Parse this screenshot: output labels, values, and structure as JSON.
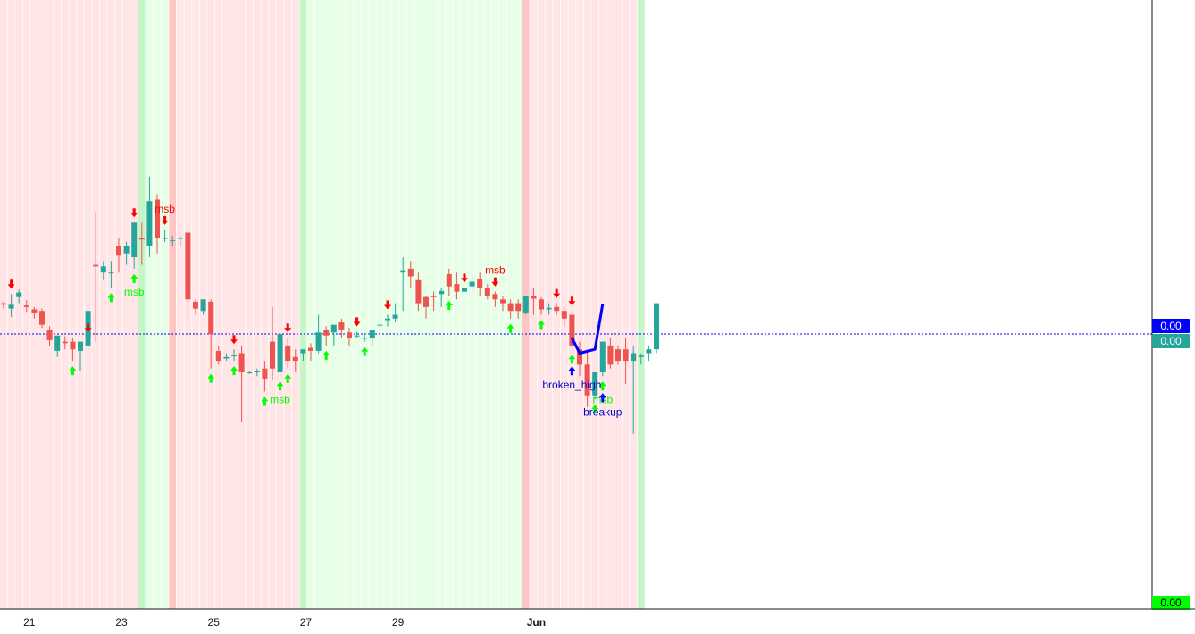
{
  "chart_data": {
    "type": "candlestick",
    "title": "",
    "x_tick_labels": [
      "21",
      "23",
      "25",
      "27",
      "29",
      "Jun"
    ],
    "price_badges": [
      {
        "label": "0.00",
        "color": "#0000ff"
      },
      {
        "label": "0.00",
        "color": "#26a69a"
      },
      {
        "label": "0.00",
        "color": "#00ff00"
      }
    ],
    "background_regions": [
      {
        "from": 0,
        "to": 17,
        "state": "bearish",
        "color": "#ffe5e5"
      },
      {
        "from": 18,
        "to": 21,
        "state": "bullish",
        "color": "#e6ffe6"
      },
      {
        "from": 22,
        "to": 38,
        "state": "bearish",
        "color": "#ffe5e5"
      },
      {
        "from": 39,
        "to": 67,
        "state": "bullish",
        "color": "#e6ffe6"
      },
      {
        "from": 68,
        "to": 82,
        "state": "bearish",
        "color": "#ffe5e5"
      },
      {
        "from": 83,
        "to": 83,
        "state": "bullish",
        "color": "#e6ffe6"
      }
    ],
    "candles": [
      [
        4.0,
        4.2,
        3.8,
        3.3
      ],
      [
        3.3,
        5.2,
        3.8,
        2.2
      ],
      [
        4.8,
        5.8,
        5.4,
        4.0
      ],
      [
        3.7,
        4.4,
        3.5,
        2.9
      ],
      [
        3.2,
        3.5,
        2.8,
        2.0
      ],
      [
        3.0,
        3.3,
        1.2,
        0.8
      ],
      [
        0.5,
        1.0,
        -0.8,
        -1.5
      ],
      [
        -2.2,
        -1.5,
        -0.2,
        -3.0
      ],
      [
        -1.0,
        -0.3,
        -1.2,
        -2.0
      ],
      [
        -1.0,
        -0.5,
        -2.0,
        -3.5
      ],
      [
        -2.2,
        -1.2,
        -1.0,
        -4.8
      ],
      [
        -1.5,
        -0.5,
        3.0,
        -2.0
      ],
      [
        9.0,
        16.0,
        8.8,
        -1.0
      ],
      [
        8.0,
        9.5,
        8.8,
        7.0
      ],
      [
        8.0,
        9.5,
        8.0,
        6.0
      ],
      [
        11.5,
        12.5,
        10.2,
        8.0
      ],
      [
        10.5,
        12.0,
        11.5,
        9.0
      ],
      [
        10.0,
        14.5,
        14.5,
        8.5
      ],
      [
        12.5,
        14.5,
        12.3,
        9.0
      ],
      [
        11.5,
        20.5,
        17.3,
        10.0
      ],
      [
        17.5,
        18.2,
        12.5,
        10.5
      ],
      [
        12.5,
        13.5,
        12.5,
        12.0
      ],
      [
        12.2,
        12.8,
        12.2,
        11.5
      ],
      [
        12.5,
        12.8,
        12.5,
        11.5
      ],
      [
        13.2,
        13.5,
        4.5,
        1.5
      ],
      [
        4.2,
        4.5,
        3.3,
        2.5
      ],
      [
        3.0,
        4.5,
        4.5,
        2.5
      ],
      [
        4.2,
        4.5,
        0.0,
        -4.5
      ],
      [
        -2.2,
        -1.5,
        -3.5,
        -4.0
      ],
      [
        -3.2,
        -2.5,
        -3.0,
        -3.5
      ],
      [
        -2.8,
        -2.0,
        -2.8,
        -3.5
      ],
      [
        -2.5,
        -1.5,
        -5.0,
        -11.5
      ],
      [
        -5.0,
        -4.8,
        -5.0,
        -5.2
      ],
      [
        -5.0,
        -4.5,
        -4.8,
        -5.5
      ],
      [
        -4.5,
        -3.5,
        -5.8,
        -7.5
      ],
      [
        -1.0,
        3.5,
        -4.5,
        -6.0
      ],
      [
        -5.0,
        0.0,
        0.0,
        -5.5
      ],
      [
        -1.5,
        -0.5,
        -3.5,
        -4.5
      ],
      [
        -3.0,
        -2.0,
        -3.5,
        -5.0
      ],
      [
        -2.5,
        -2.0,
        -2.0,
        -3.5
      ],
      [
        -1.8,
        -1.2,
        -2.2,
        -3.5
      ],
      [
        -2.2,
        2.5,
        0.2,
        -2.5
      ],
      [
        0.5,
        1.0,
        -0.2,
        -1.5
      ],
      [
        0.2,
        1.2,
        1.2,
        -1.5
      ],
      [
        1.5,
        2.0,
        0.5,
        -0.5
      ],
      [
        0.2,
        0.8,
        -0.5,
        -1.5
      ],
      [
        -0.2,
        0.3,
        -0.2,
        -0.5
      ],
      [
        -0.5,
        0.0,
        -0.5,
        -1.0
      ],
      [
        -0.5,
        0.5,
        0.5,
        -1.5
      ],
      [
        1.2,
        2.0,
        1.2,
        0.5
      ],
      [
        1.8,
        2.5,
        2.0,
        1.0
      ],
      [
        2.0,
        4.0,
        2.5,
        1.5
      ],
      [
        8.0,
        10.0,
        8.3,
        3.0
      ],
      [
        8.5,
        9.5,
        7.5,
        6.0
      ],
      [
        7.0,
        8.0,
        4.0,
        3.0
      ],
      [
        4.8,
        5.0,
        3.5,
        2.0
      ],
      [
        5.0,
        5.5,
        4.8,
        3.0
      ],
      [
        5.2,
        6.0,
        5.6,
        3.5
      ],
      [
        7.8,
        8.5,
        6.2,
        5.0
      ],
      [
        6.5,
        8.0,
        5.5,
        4.5
      ],
      [
        5.5,
        6.0,
        6.0,
        5.5
      ],
      [
        6.2,
        7.5,
        6.8,
        5.5
      ],
      [
        7.2,
        8.0,
        6.0,
        5.0
      ],
      [
        6.0,
        6.5,
        5.0,
        4.5
      ],
      [
        5.2,
        5.5,
        4.5,
        3.5
      ],
      [
        4.5,
        5.0,
        4.0,
        3.0
      ],
      [
        4.0,
        4.5,
        3.0,
        2.0
      ],
      [
        4.0,
        4.5,
        3.0,
        2.0
      ],
      [
        2.8,
        5.0,
        5.0,
        2.5
      ],
      [
        5.0,
        6.0,
        4.6,
        2.5
      ],
      [
        4.5,
        4.8,
        3.2,
        2.5
      ],
      [
        3.2,
        4.0,
        3.4,
        2.5
      ],
      [
        3.5,
        4.0,
        3.0,
        2.5
      ],
      [
        3.0,
        3.5,
        2.0,
        1.0
      ],
      [
        2.5,
        3.0,
        -1.5,
        -2.0
      ],
      [
        -2.0,
        -1.0,
        -4.0,
        -5.5
      ],
      [
        -4.0,
        -2.0,
        -8.0,
        -9.5
      ],
      [
        -8.0,
        -5.0,
        -5.0,
        -8.5
      ],
      [
        -5.0,
        -1.0,
        -1.0,
        -5.5
      ],
      [
        -1.5,
        -0.5,
        -4.0,
        -4.5
      ],
      [
        -2.0,
        -1.5,
        -3.5,
        -4.0
      ],
      [
        -2.0,
        -0.5,
        -3.5,
        -6.5
      ],
      [
        -3.5,
        -1.5,
        -2.5,
        -13.0
      ],
      [
        -3.0,
        -2.5,
        -2.8,
        -4.0
      ],
      [
        -2.5,
        -1.5,
        -2.0,
        -3.5
      ],
      [
        -2.0,
        4.0,
        4.0,
        -2.5
      ]
    ],
    "signals": [
      {
        "i": 1,
        "type": "down",
        "text": ""
      },
      {
        "i": 9,
        "type": "up",
        "text": ""
      },
      {
        "i": 11,
        "type": "down",
        "text": ""
      },
      {
        "i": 14,
        "type": "up",
        "text": ""
      },
      {
        "i": 17,
        "type": "down",
        "text": ""
      },
      {
        "i": 17,
        "type": "up",
        "text": "msb"
      },
      {
        "i": 21,
        "type": "down",
        "text": "msb"
      },
      {
        "i": 27,
        "type": "up",
        "text": ""
      },
      {
        "i": 30,
        "type": "down",
        "text": ""
      },
      {
        "i": 30,
        "type": "up",
        "text": ""
      },
      {
        "i": 34,
        "type": "up",
        "text": ""
      },
      {
        "i": 36,
        "type": "up",
        "text": "msb"
      },
      {
        "i": 37,
        "type": "down",
        "text": ""
      },
      {
        "i": 37,
        "type": "up",
        "text": ""
      },
      {
        "i": 42,
        "type": "up",
        "text": ""
      },
      {
        "i": 46,
        "type": "down",
        "text": ""
      },
      {
        "i": 47,
        "type": "up",
        "text": ""
      },
      {
        "i": 50,
        "type": "down",
        "text": ""
      },
      {
        "i": 58,
        "type": "up",
        "text": ""
      },
      {
        "i": 60,
        "type": "down",
        "text": ""
      },
      {
        "i": 64,
        "type": "down",
        "text": "msb"
      },
      {
        "i": 66,
        "type": "up",
        "text": ""
      },
      {
        "i": 70,
        "type": "up",
        "text": ""
      },
      {
        "i": 72,
        "type": "down",
        "text": ""
      },
      {
        "i": 74,
        "type": "down",
        "text": ""
      },
      {
        "i": 74,
        "type": "up",
        "text": ""
      },
      {
        "i": 77,
        "type": "up",
        "text": ""
      },
      {
        "i": 78,
        "type": "up",
        "text": "msb"
      }
    ],
    "breakouts": [
      {
        "i": 74,
        "text": "broken_high"
      },
      {
        "i": 78,
        "text": "breakup"
      }
    ],
    "horizontal_line": {
      "style": "dotted",
      "color": "#0000ff"
    },
    "trend_line": {
      "color": "#0000ff",
      "points": [
        [
          74,
          -0.5
        ],
        [
          75,
          -2.5
        ],
        [
          77,
          -2.0
        ],
        [
          78,
          3.9
        ]
      ]
    }
  },
  "axis": {
    "tick_labels": [
      "21",
      "23",
      "25",
      "27",
      "29",
      "Jun"
    ]
  }
}
